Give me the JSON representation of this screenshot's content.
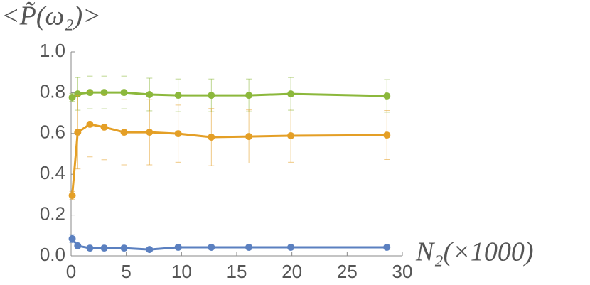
{
  "chart_data": {
    "type": "line",
    "y_label": "<P̃(ω₂)>",
    "x_label": "N₂(×1000)",
    "x": [
      0.1,
      0.6,
      1.7,
      3,
      4.8,
      7.1,
      9.7,
      12.7,
      16.1,
      19.9,
      28.6
    ],
    "series": [
      {
        "name": "green",
        "color": "#8cb83c",
        "values": [
          0.777,
          0.794,
          0.801,
          0.801,
          0.801,
          0.791,
          0.787,
          0.787,
          0.787,
          0.794,
          0.784
        ],
        "errors": [
          0.02,
          0.08,
          0.08,
          0.08,
          0.08,
          0.08,
          0.08,
          0.08,
          0.08,
          0.08,
          0.08
        ]
      },
      {
        "name": "orange",
        "color": "#e49f26",
        "values": [
          0.296,
          0.606,
          0.645,
          0.631,
          0.606,
          0.606,
          0.599,
          0.582,
          0.585,
          0.589,
          0.592
        ],
        "errors": [
          0.02,
          0.18,
          0.16,
          0.16,
          0.16,
          0.16,
          0.14,
          0.14,
          0.13,
          0.13,
          0.12
        ]
      },
      {
        "name": "blue",
        "color": "#5b80c0",
        "values": [
          0.084,
          0.049,
          0.038,
          0.038,
          0.038,
          0.031,
          0.042,
          0.042,
          0.042,
          0.042,
          0.042
        ],
        "errors": [
          0.02,
          0.01,
          0.01,
          0.01,
          0.01,
          0.01,
          0.01,
          0.01,
          0.01,
          0.01,
          0.01
        ]
      }
    ],
    "xlim": [
      0,
      30
    ],
    "xticks": [
      0,
      5,
      10,
      15,
      20,
      25,
      30
    ],
    "ylim": [
      0,
      1
    ],
    "yticks": [
      {
        "value": 0,
        "label": "0.0"
      },
      0.2,
      0.4,
      0.6,
      0.8,
      {
        "value": 1,
        "label": "1.0"
      }
    ]
  }
}
